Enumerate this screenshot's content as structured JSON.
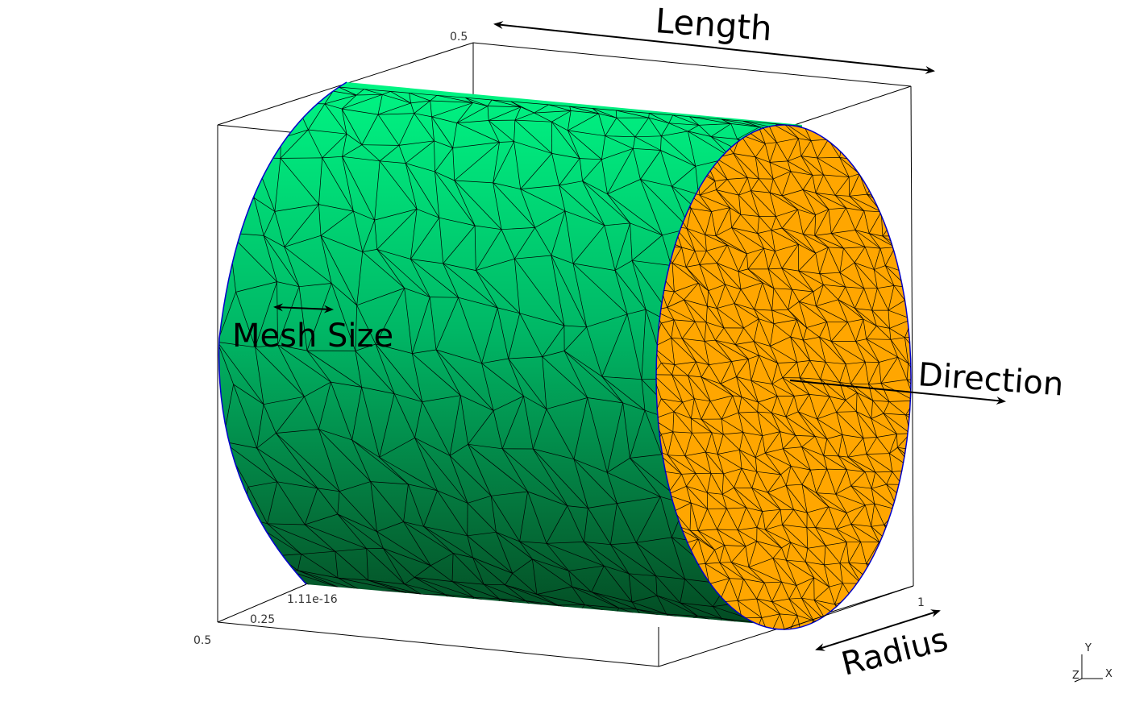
{
  "annotations": {
    "length": "Length",
    "mesh_size": "Mesh Size",
    "direction": "Direction",
    "radius": "Radius"
  },
  "ticks": {
    "top": "0.5",
    "bottom_left": "0.5",
    "mid_025": "0.25",
    "tiny": "1.11e-16",
    "right": "1"
  },
  "orientation_axes": {
    "y": "Y",
    "z": "Z",
    "x": "X"
  },
  "colors": {
    "surface_light": "#00f583",
    "surface_dark": "#034a22",
    "end_cap": "#ffa600",
    "mesh_lines": "#000000",
    "boundary": "#0000cc",
    "bounding_box": "#000000"
  }
}
